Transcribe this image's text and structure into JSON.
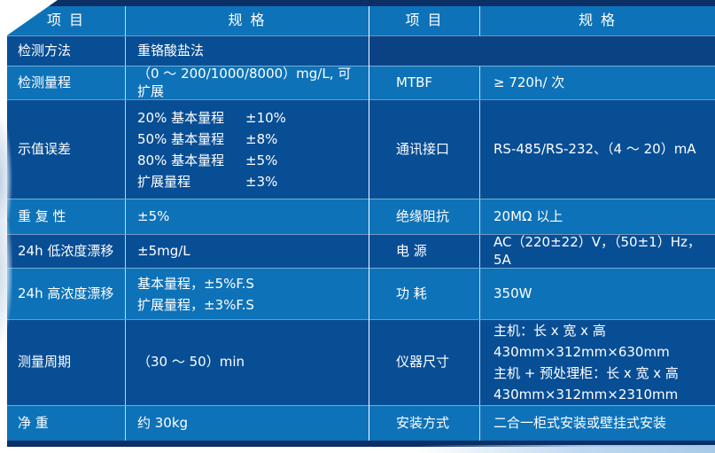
{
  "colors": {
    "border_navy": "#0c2f66",
    "row_dark": "#084e95",
    "row_medium": "#0e72b8",
    "blank_cell": "#0a4284",
    "text": "#ffffff"
  },
  "table": {
    "left": {
      "header": {
        "item": "项 目",
        "spec": "规 格"
      },
      "rows": {
        "detection_method": {
          "item": "检测方法",
          "spec": "重铬酸盐法"
        },
        "detection_range": {
          "item": "检测量程",
          "spec": "（0 ～ 200/1000/8000）mg/L, 可扩展"
        },
        "indication_error": {
          "item": "示值误差",
          "lines": [
            {
              "label": "20% 基本量程",
              "value": "±10%"
            },
            {
              "label": "50% 基本量程",
              "value": "±8%"
            },
            {
              "label": "80% 基本量程",
              "value": "±5%"
            },
            {
              "label": "扩展量程",
              "value": "±3%"
            }
          ]
        },
        "repeatability": {
          "item": "重 复 性",
          "spec": "±5%"
        },
        "drift_low": {
          "item": "24h 低浓度漂移",
          "spec": "±5mg/L"
        },
        "drift_high": {
          "item": "24h 高浓度漂移",
          "lines": [
            "基本量程，±5%F.S",
            "扩展量程，±3%F.S"
          ]
        },
        "measurement_cycle": {
          "item": "测量周期",
          "spec": "（30 ～ 50）min"
        },
        "net_weight": {
          "item": "净 重",
          "spec": "约 30kg"
        }
      }
    },
    "right": {
      "header": {
        "item": "项 目",
        "spec": "规 格"
      },
      "rows": {
        "mtbf": {
          "item": "MTBF",
          "spec": "≥ 720h/ 次"
        },
        "comm": {
          "item": "通讯接口",
          "spec": "RS-485/RS-232、（4 ～ 20）mA"
        },
        "insulation": {
          "item": "绝缘阻抗",
          "spec": "20MΩ 以上"
        },
        "power_supply": {
          "item": "电 源",
          "spec": "AC（220±22）V，（50±1）Hz，5A"
        },
        "power_consumption": {
          "item": "功 耗",
          "spec": "350W"
        },
        "dimensions": {
          "item": "仪器尺寸",
          "lines": [
            "主机：长 x 宽 x 高",
            "430mm×312mm×630mm",
            "主机 + 预处理柜：长 x 宽 x 高",
            "430mm×312mm×2310mm"
          ]
        },
        "installation": {
          "item": "安装方式",
          "spec": "二合一柜式安装或壁挂式安装"
        }
      }
    }
  }
}
